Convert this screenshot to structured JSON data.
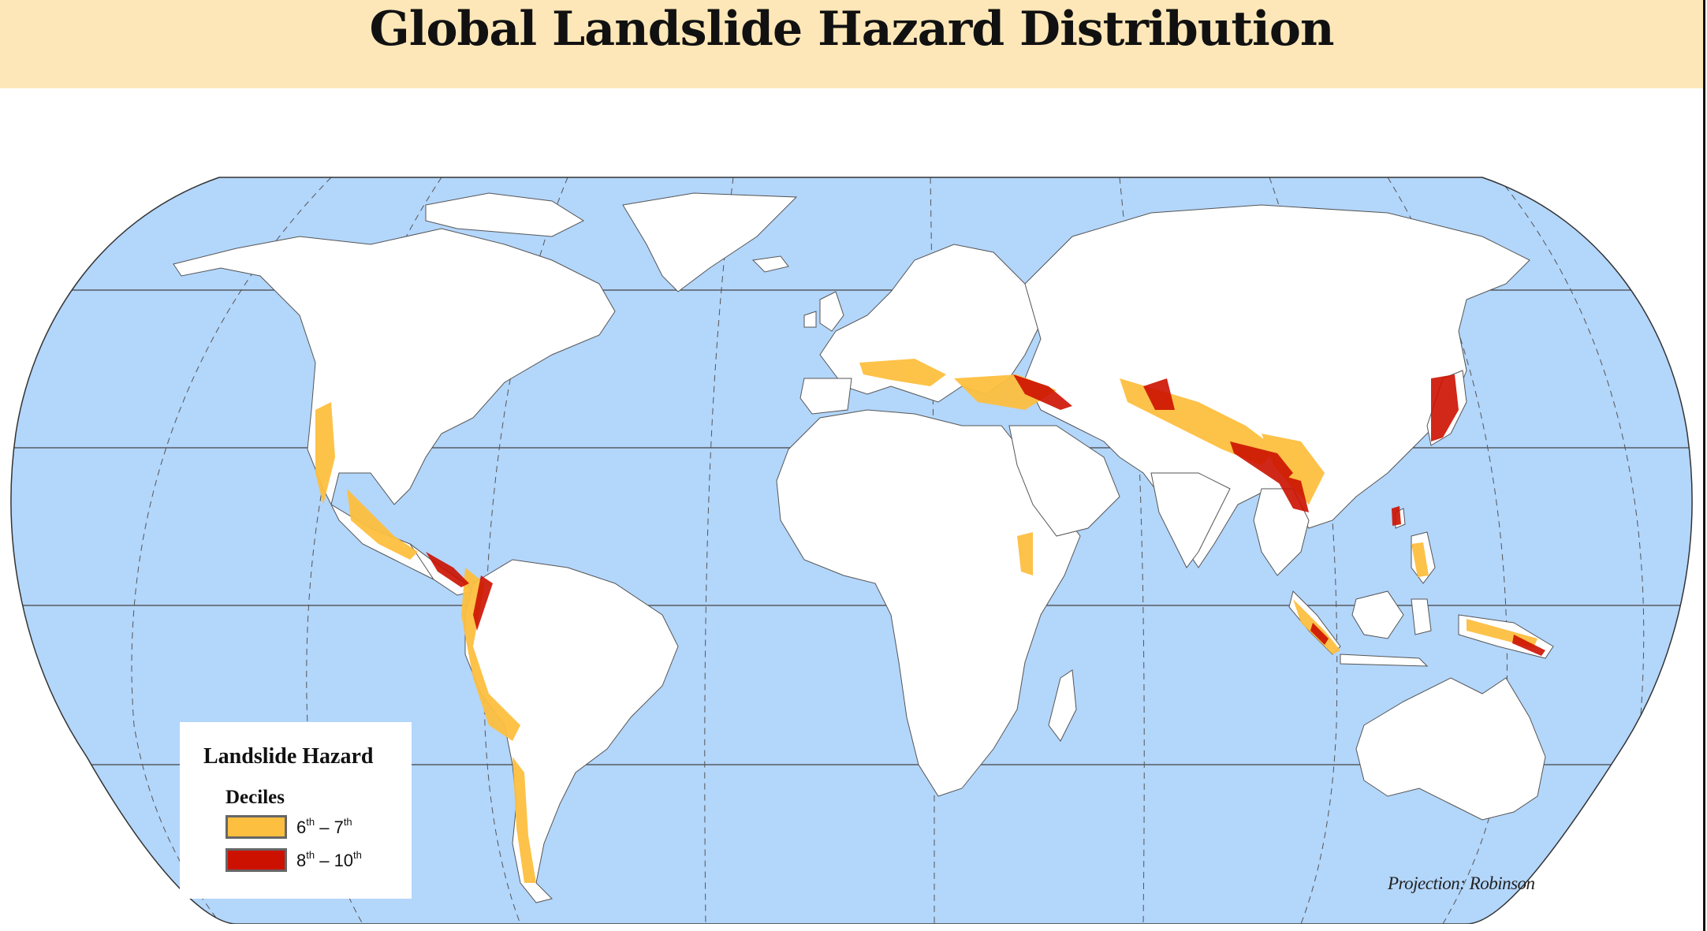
{
  "title": "Global Landslide Hazard Distribution",
  "legend": {
    "title": "Landslide Hazard",
    "subtitle": "Deciles",
    "items": [
      {
        "from": "6",
        "from_sup": "th",
        "dash": " – ",
        "to": "7",
        "to_sup": "th",
        "color": "#fdbf3f"
      },
      {
        "from": "8",
        "from_sup": "th",
        "dash": " – ",
        "to": "10",
        "to_sup": "th",
        "color": "#cc1100"
      }
    ]
  },
  "projection_note": "Projection: Robinson",
  "colors": {
    "ocean": "#b3d6fb",
    "land": "#ffffff",
    "title_band": "#fde7b8",
    "hazard_moderate": "#fdbf3f",
    "hazard_high": "#cc1100"
  }
}
